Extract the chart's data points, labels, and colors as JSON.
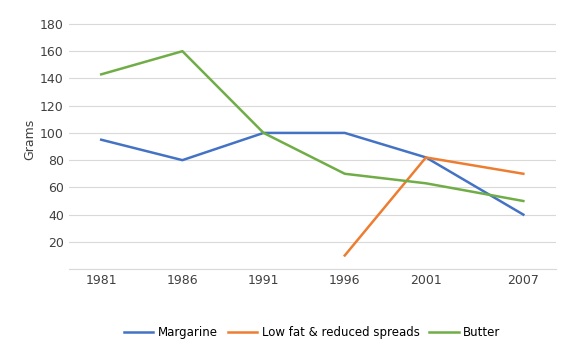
{
  "years": [
    1981,
    1986,
    1991,
    1996,
    2001,
    2007
  ],
  "margarine": [
    95,
    80,
    100,
    100,
    82,
    40
  ],
  "low_fat": [
    null,
    null,
    null,
    10,
    82,
    70
  ],
  "butter": [
    143,
    160,
    100,
    70,
    63,
    50
  ],
  "ylabel": "Grams",
  "ylim": [
    0,
    190
  ],
  "yticks": [
    0,
    20,
    40,
    60,
    80,
    100,
    120,
    140,
    160,
    180
  ],
  "margarine_color": "#4472C4",
  "low_fat_color": "#ED7D31",
  "butter_color": "#70AD47",
  "legend_labels": [
    "Margarine",
    "Low fat & reduced spreads",
    "Butter"
  ],
  "background_color": "#FFFFFF",
  "grid_color": "#D9D9D9"
}
